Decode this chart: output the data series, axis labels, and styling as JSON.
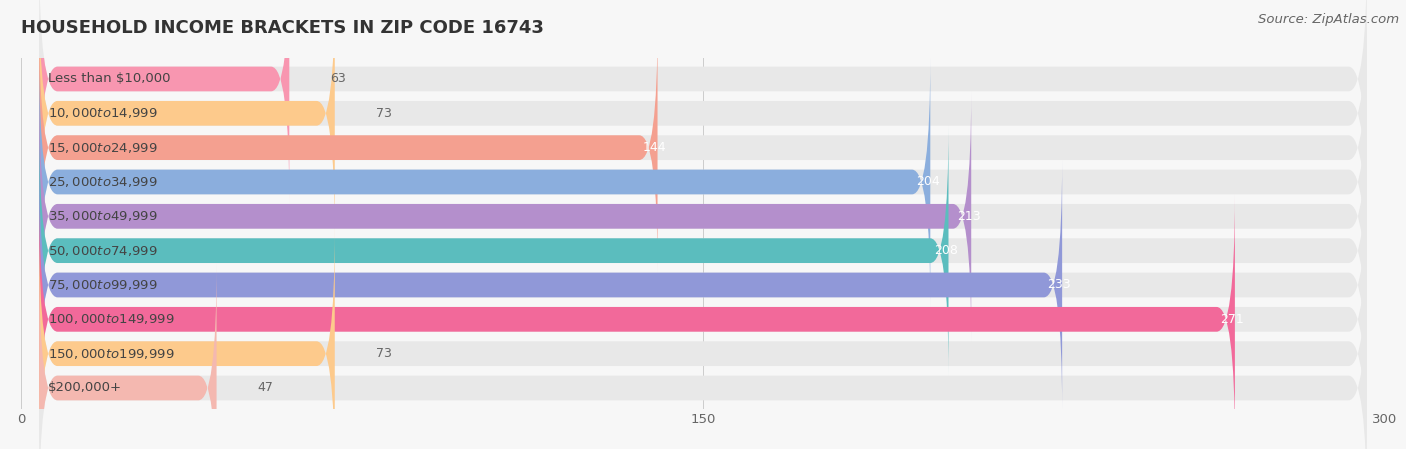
{
  "title": "HOUSEHOLD INCOME BRACKETS IN ZIP CODE 16743",
  "source": "Source: ZipAtlas.com",
  "categories": [
    "Less than $10,000",
    "$10,000 to $14,999",
    "$15,000 to $24,999",
    "$25,000 to $34,999",
    "$35,000 to $49,999",
    "$50,000 to $74,999",
    "$75,000 to $99,999",
    "$100,000 to $149,999",
    "$150,000 to $199,999",
    "$200,000+"
  ],
  "values": [
    63,
    73,
    144,
    204,
    213,
    208,
    233,
    271,
    73,
    47
  ],
  "bar_colors": [
    "#F896B0",
    "#FDCA8C",
    "#F4A090",
    "#8BAEDD",
    "#B48FCC",
    "#5BBDBE",
    "#9098D8",
    "#F2699A",
    "#FDCA8C",
    "#F4B8B0"
  ],
  "background_color": "#f7f7f7",
  "bar_bg_color": "#e8e8e8",
  "xlim": [
    0,
    300
  ],
  "xticks": [
    0,
    150,
    300
  ],
  "title_fontsize": 13,
  "label_fontsize": 9.5,
  "value_fontsize": 9,
  "source_fontsize": 9.5,
  "bar_height": 0.72,
  "value_inside_threshold": 100
}
